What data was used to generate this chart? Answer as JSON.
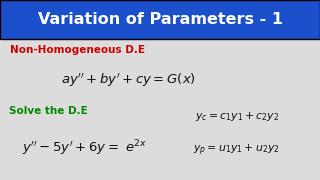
{
  "title": "Variation of Parameters - 1",
  "title_bg_color": "#1B4FCC",
  "title_text_color": "#FFFFFF",
  "bg_color": "#DCDCDC",
  "label1": "Non-Homogeneous D.E",
  "label1_color": "#CC0000",
  "eq1": "$ay'' + by' + cy = G(x)$",
  "label2": "Solve the D.E",
  "label2_color": "#008800",
  "eq2": "$y'' - 5y' + 6y = \\ e^{2x}$",
  "eq3": "$y_c = c_1y_1 + c_2y_2$",
  "eq4": "$y_p = u_1y_1 + u_2y_2$",
  "eq_color": "#111111",
  "title_fontsize": 11.5,
  "label_fontsize": 7.5,
  "eq_fontsize": 9.5,
  "small_eq_fontsize": 7.8
}
